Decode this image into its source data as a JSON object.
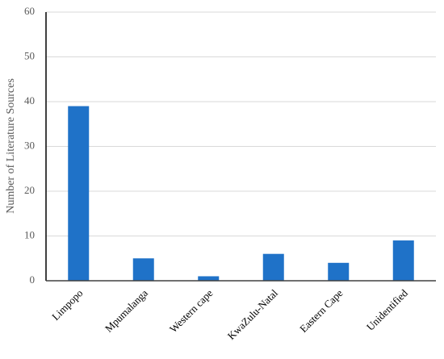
{
  "chart_data": {
    "type": "bar",
    "y_label": "Number of Literature Sources",
    "categories": [
      "Limpopo",
      "Mpumalanga",
      "Western cape",
      "KwaZulu-Natal",
      "Eastern Cape",
      "Unidentified"
    ],
    "values": [
      39,
      5,
      1,
      6,
      4,
      9
    ],
    "color": "#1f72c8",
    "ylim": [
      0,
      60
    ],
    "yticks": [
      0,
      10,
      20,
      30,
      40,
      50,
      60
    ],
    "grid": true
  }
}
